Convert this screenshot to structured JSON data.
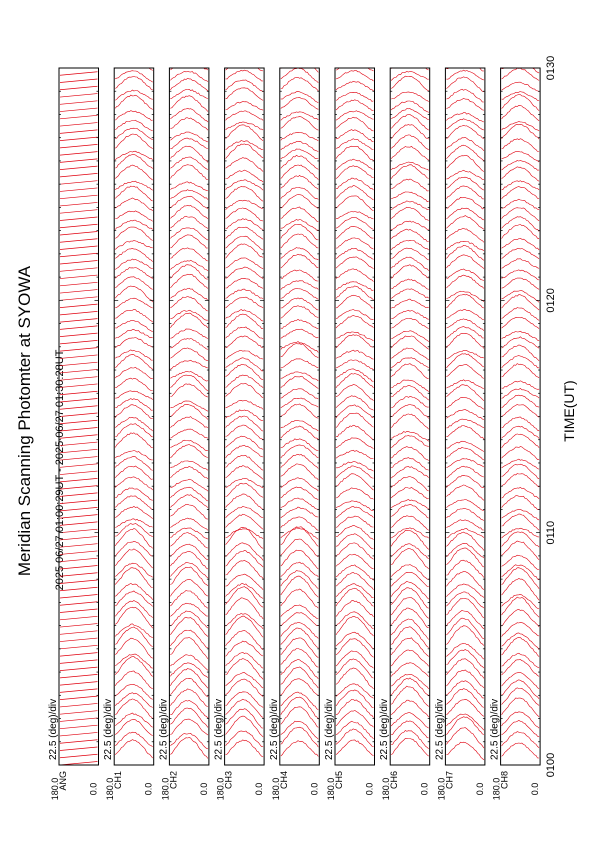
{
  "header": {
    "title": "Meridian Scanning Photomter at SYOWA",
    "time_range": "2025 06/27 01:00:29UT - 2025 06/27 01:30:28UT"
  },
  "colors": {
    "trace": "#e0000f",
    "frame": "#000000",
    "background": "#ffffff"
  },
  "chart_data": {
    "type": "line",
    "title": "Meridian Scanning Photomter at SYOWA",
    "subtitle": "2025 06/27 01:00:29UT - 2025 06/27 01:30:28UT",
    "xlabel": "TIME(UT)",
    "x_ticks": [
      "0100",
      "0110",
      "0120",
      "0130"
    ],
    "x_range": [
      "01:00",
      "01:30"
    ],
    "panel_scale_label": "22.5 (deg)/div",
    "panel_y_ticks": [
      "180.0",
      "0.0"
    ],
    "grid": false,
    "panels": [
      {
        "channel": "ANG",
        "scale": "22.5 (deg)/div",
        "y_top": "180.0",
        "y_bottom": "0.0"
      },
      {
        "channel": "CH1",
        "scale": "22.5 (deg)/div",
        "y_top": "180.0",
        "y_bottom": "0.0"
      },
      {
        "channel": "CH2",
        "scale": "22.5 (deg)/div",
        "y_top": "180.0",
        "y_bottom": "0.0"
      },
      {
        "channel": "CH3",
        "scale": "22.5 (deg)/div",
        "y_top": "180.0",
        "y_bottom": "0.0"
      },
      {
        "channel": "CH4",
        "scale": "22.5 (deg)/div",
        "y_top": "180.0",
        "y_bottom": "0.0"
      },
      {
        "channel": "CH5",
        "scale": "22.5 (deg)/div",
        "y_top": "180.0",
        "y_bottom": "0.0"
      },
      {
        "channel": "CH6",
        "scale": "22.5 (deg)/div",
        "y_top": "180.0",
        "y_bottom": "0.0"
      },
      {
        "channel": "CH7",
        "scale": "22.5 (deg)/div",
        "y_top": "180.0",
        "y_bottom": "0.0"
      },
      {
        "channel": "CH8",
        "scale": "22.5 (deg)/div",
        "y_top": "180.0",
        "y_bottom": "0.0"
      }
    ]
  }
}
